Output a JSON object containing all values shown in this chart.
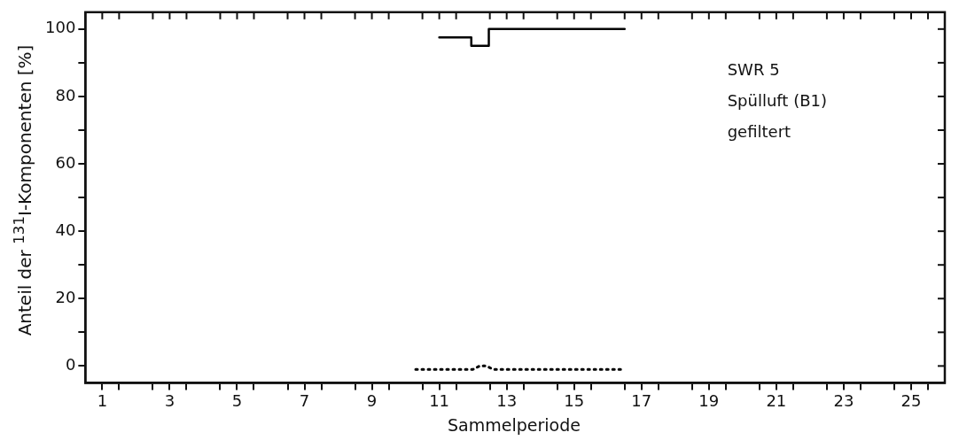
{
  "chart_data": {
    "type": "line",
    "xlabel": "Sammelperiode",
    "ylabel": "Anteil der $^{131}$I-Komponenten [%]",
    "annotations": [
      "SWR 5",
      "Spülluft (B1)",
      "gefiltert"
    ],
    "xlim": [
      0.5,
      26
    ],
    "xticks": [
      1,
      {
        "value": 1.5,
        "label": null
      },
      {
        "value": 2.5,
        "label": null
      },
      3,
      {
        "value": 3.5,
        "label": null
      },
      {
        "value": 4.5,
        "label": null
      },
      5,
      {
        "value": 5.5,
        "label": null
      },
      {
        "value": 6.5,
        "label": null
      },
      7,
      {
        "value": 7.5,
        "label": null
      },
      {
        "value": 8.5,
        "label": null
      },
      9,
      {
        "value": 9.5,
        "label": null
      },
      {
        "value": 10.5,
        "label": null
      },
      11,
      {
        "value": 11.5,
        "label": null
      },
      {
        "value": 12.5,
        "label": null
      },
      13,
      {
        "value": 13.5,
        "label": null
      },
      {
        "value": 14.5,
        "label": null
      },
      15,
      {
        "value": 15.5,
        "label": null
      },
      {
        "value": 16.5,
        "label": null
      },
      17,
      {
        "value": 17.5,
        "label": null
      },
      {
        "value": 18.5,
        "label": null
      },
      19,
      {
        "value": 19.5,
        "label": null
      },
      {
        "value": 20.5,
        "label": null
      },
      21,
      {
        "value": 21.5,
        "label": null
      },
      {
        "value": 22.5,
        "label": null
      },
      23,
      {
        "value": 23.5,
        "label": null
      },
      {
        "value": 24.5,
        "label": null
      },
      25,
      {
        "value": 25.5,
        "label": null
      }
    ],
    "ylim": [
      -5,
      105
    ],
    "yticks": [
      0,
      {
        "value": 10,
        "label": null
      },
      20,
      {
        "value": 30,
        "label": null
      },
      40,
      {
        "value": 50,
        "label": null
      },
      60,
      {
        "value": 70,
        "label": null
      },
      80,
      {
        "value": 90,
        "label": null
      },
      100
    ],
    "grid": false,
    "legend": false,
    "marker": "none",
    "series": [
      {
        "color": "#000000",
        "line_style": "solid",
        "x": [
          11,
          11.95,
          11.95,
          12.47,
          12.47,
          16.5
        ],
        "values": [
          97.5,
          97.5,
          95,
          95,
          100,
          100
        ]
      },
      {
        "color": "#000000",
        "line_style": "dotted",
        "x": [
          10.3,
          12.0,
          12.2,
          12.4,
          12.6,
          16.5
        ],
        "values": [
          -1,
          -1,
          0,
          0,
          -1,
          -1
        ]
      }
    ]
  }
}
